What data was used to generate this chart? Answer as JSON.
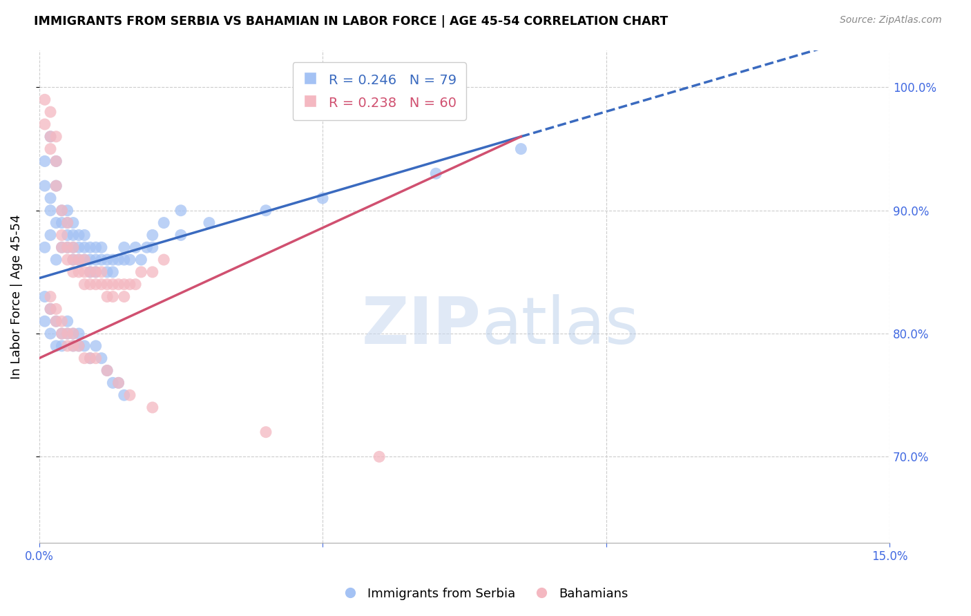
{
  "title": "IMMIGRANTS FROM SERBIA VS BAHAMIAN IN LABOR FORCE | AGE 45-54 CORRELATION CHART",
  "source": "Source: ZipAtlas.com",
  "ylabel": "In Labor Force | Age 45-54",
  "xlim": [
    0.0,
    0.15
  ],
  "ylim": [
    0.63,
    1.03
  ],
  "right_yticks": [
    0.7,
    0.8,
    0.9,
    1.0
  ],
  "right_yticklabels": [
    "70.0%",
    "80.0%",
    "90.0%",
    "100.0%"
  ],
  "series1_color": "#a4c2f4",
  "series2_color": "#f4b8c1",
  "trend1_color": "#3a6abf",
  "trend2_color": "#d05070",
  "R1": 0.246,
  "N1": 79,
  "R2": 0.238,
  "N2": 60,
  "series1_label": "Immigrants from Serbia",
  "series2_label": "Bahamians",
  "background_color": "#ffffff",
  "grid_color": "#cccccc",
  "axis_color": "#4169e1",
  "serbia_x": [
    0.001,
    0.001,
    0.001,
    0.002,
    0.002,
    0.002,
    0.002,
    0.003,
    0.003,
    0.003,
    0.003,
    0.004,
    0.004,
    0.004,
    0.005,
    0.005,
    0.005,
    0.005,
    0.006,
    0.006,
    0.006,
    0.006,
    0.007,
    0.007,
    0.007,
    0.008,
    0.008,
    0.008,
    0.009,
    0.009,
    0.009,
    0.01,
    0.01,
    0.01,
    0.011,
    0.011,
    0.012,
    0.012,
    0.013,
    0.013,
    0.014,
    0.015,
    0.015,
    0.016,
    0.017,
    0.018,
    0.019,
    0.02,
    0.022,
    0.025,
    0.001,
    0.001,
    0.002,
    0.002,
    0.003,
    0.003,
    0.004,
    0.004,
    0.005,
    0.005,
    0.006,
    0.006,
    0.007,
    0.007,
    0.008,
    0.009,
    0.01,
    0.011,
    0.012,
    0.013,
    0.014,
    0.015,
    0.02,
    0.025,
    0.03,
    0.04,
    0.05,
    0.07,
    0.085
  ],
  "serbia_y": [
    0.94,
    0.92,
    0.87,
    0.96,
    0.91,
    0.9,
    0.88,
    0.94,
    0.92,
    0.89,
    0.86,
    0.9,
    0.89,
    0.87,
    0.9,
    0.89,
    0.88,
    0.87,
    0.89,
    0.88,
    0.87,
    0.86,
    0.88,
    0.87,
    0.86,
    0.88,
    0.87,
    0.86,
    0.87,
    0.86,
    0.85,
    0.87,
    0.86,
    0.85,
    0.87,
    0.86,
    0.86,
    0.85,
    0.86,
    0.85,
    0.86,
    0.87,
    0.86,
    0.86,
    0.87,
    0.86,
    0.87,
    0.88,
    0.89,
    0.9,
    0.83,
    0.81,
    0.82,
    0.8,
    0.81,
    0.79,
    0.8,
    0.79,
    0.81,
    0.8,
    0.8,
    0.79,
    0.8,
    0.79,
    0.79,
    0.78,
    0.79,
    0.78,
    0.77,
    0.76,
    0.76,
    0.75,
    0.87,
    0.88,
    0.89,
    0.9,
    0.91,
    0.93,
    0.95
  ],
  "bahamas_x": [
    0.001,
    0.001,
    0.002,
    0.002,
    0.002,
    0.003,
    0.003,
    0.003,
    0.004,
    0.004,
    0.004,
    0.005,
    0.005,
    0.005,
    0.006,
    0.006,
    0.006,
    0.007,
    0.007,
    0.008,
    0.008,
    0.008,
    0.009,
    0.009,
    0.01,
    0.01,
    0.011,
    0.011,
    0.012,
    0.012,
    0.013,
    0.013,
    0.014,
    0.015,
    0.015,
    0.016,
    0.017,
    0.018,
    0.02,
    0.022,
    0.002,
    0.002,
    0.003,
    0.003,
    0.004,
    0.004,
    0.005,
    0.005,
    0.006,
    0.006,
    0.007,
    0.008,
    0.009,
    0.01,
    0.012,
    0.014,
    0.016,
    0.02,
    0.04,
    0.06
  ],
  "bahamas_y": [
    0.99,
    0.97,
    0.98,
    0.96,
    0.95,
    0.96,
    0.94,
    0.92,
    0.9,
    0.88,
    0.87,
    0.89,
    0.87,
    0.86,
    0.87,
    0.86,
    0.85,
    0.86,
    0.85,
    0.86,
    0.85,
    0.84,
    0.85,
    0.84,
    0.85,
    0.84,
    0.85,
    0.84,
    0.84,
    0.83,
    0.84,
    0.83,
    0.84,
    0.84,
    0.83,
    0.84,
    0.84,
    0.85,
    0.85,
    0.86,
    0.83,
    0.82,
    0.82,
    0.81,
    0.81,
    0.8,
    0.8,
    0.79,
    0.8,
    0.79,
    0.79,
    0.78,
    0.78,
    0.78,
    0.77,
    0.76,
    0.75,
    0.74,
    0.72,
    0.7
  ],
  "trend1_x0": 0.0,
  "trend1_y0": 0.845,
  "trend1_x1": 0.085,
  "trend1_y1": 0.96,
  "trend1_xdash_start": 0.085,
  "trend1_xdash_end": 0.15,
  "trend2_x0": 0.0,
  "trend2_y0": 0.78,
  "trend2_x1": 0.085,
  "trend2_y1": 0.96
}
